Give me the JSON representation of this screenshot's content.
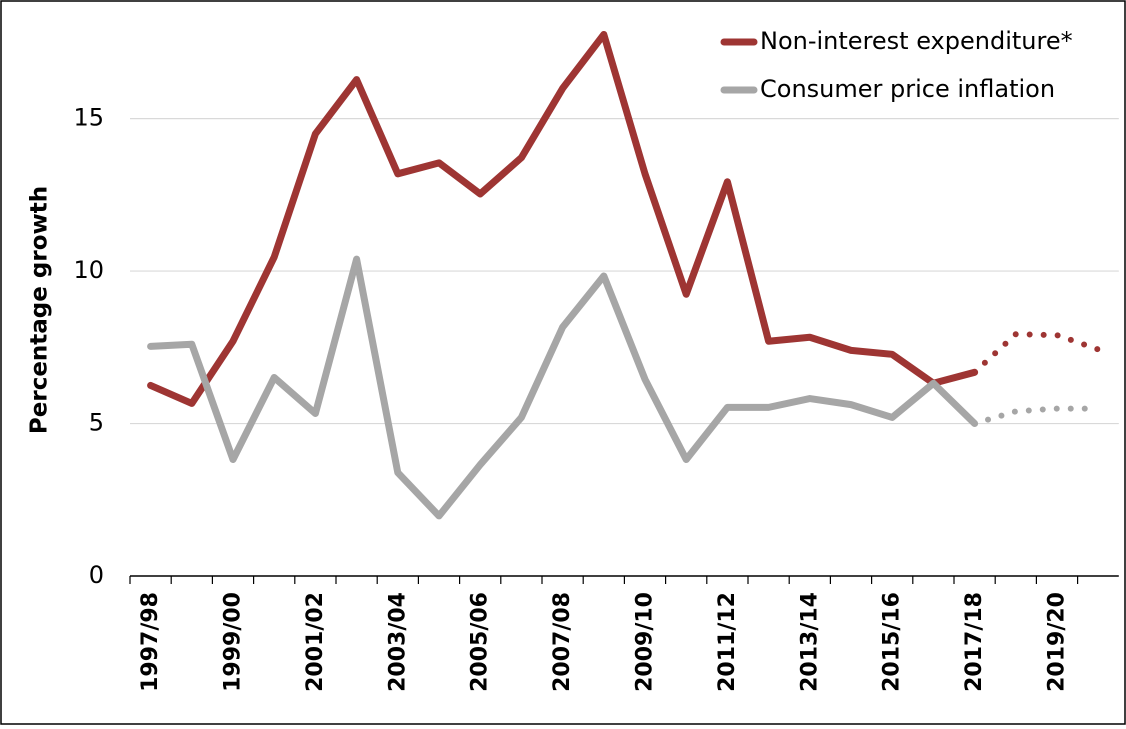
{
  "chart_data": {
    "type": "line",
    "y_label": "Percentage growth",
    "categories": [
      "1997/98",
      null,
      "1999/00",
      null,
      "2001/02",
      null,
      "2003/04",
      null,
      "2005/06",
      null,
      "2007/08",
      null,
      "2009/10",
      null,
      "2011/12",
      null,
      "2013/14",
      null,
      "2015/16",
      null,
      "2017/18",
      null,
      "2019/20",
      null
    ],
    "series": [
      {
        "name": "Non-interest expenditure*",
        "color": "#9e3533",
        "values": [
          6.25,
          5.66,
          7.7,
          10.46,
          14.5,
          16.28,
          13.19,
          13.55,
          12.53,
          13.72,
          15.99,
          17.76,
          13.19,
          9.24,
          12.93,
          7.7,
          7.83,
          7.4,
          7.27,
          6.32,
          6.68,
          7.93,
          7.9,
          7.43
        ]
      },
      {
        "name": "Consumer price inflation",
        "color": "#a6a6a6",
        "values": [
          7.53,
          7.6,
          3.82,
          6.51,
          5.33,
          10.39,
          3.39,
          1.97,
          3.65,
          5.2,
          8.16,
          9.84,
          6.45,
          3.82,
          5.53,
          5.53,
          5.82,
          5.62,
          5.2,
          6.32,
          5.0,
          5.4,
          5.49,
          5.49
        ]
      }
    ],
    "forecast_start_index": 20,
    "ylim": [
      0,
      18.3
    ],
    "yticks": [
      0,
      5,
      10,
      15
    ],
    "grid": true,
    "legend": "top-right"
  }
}
